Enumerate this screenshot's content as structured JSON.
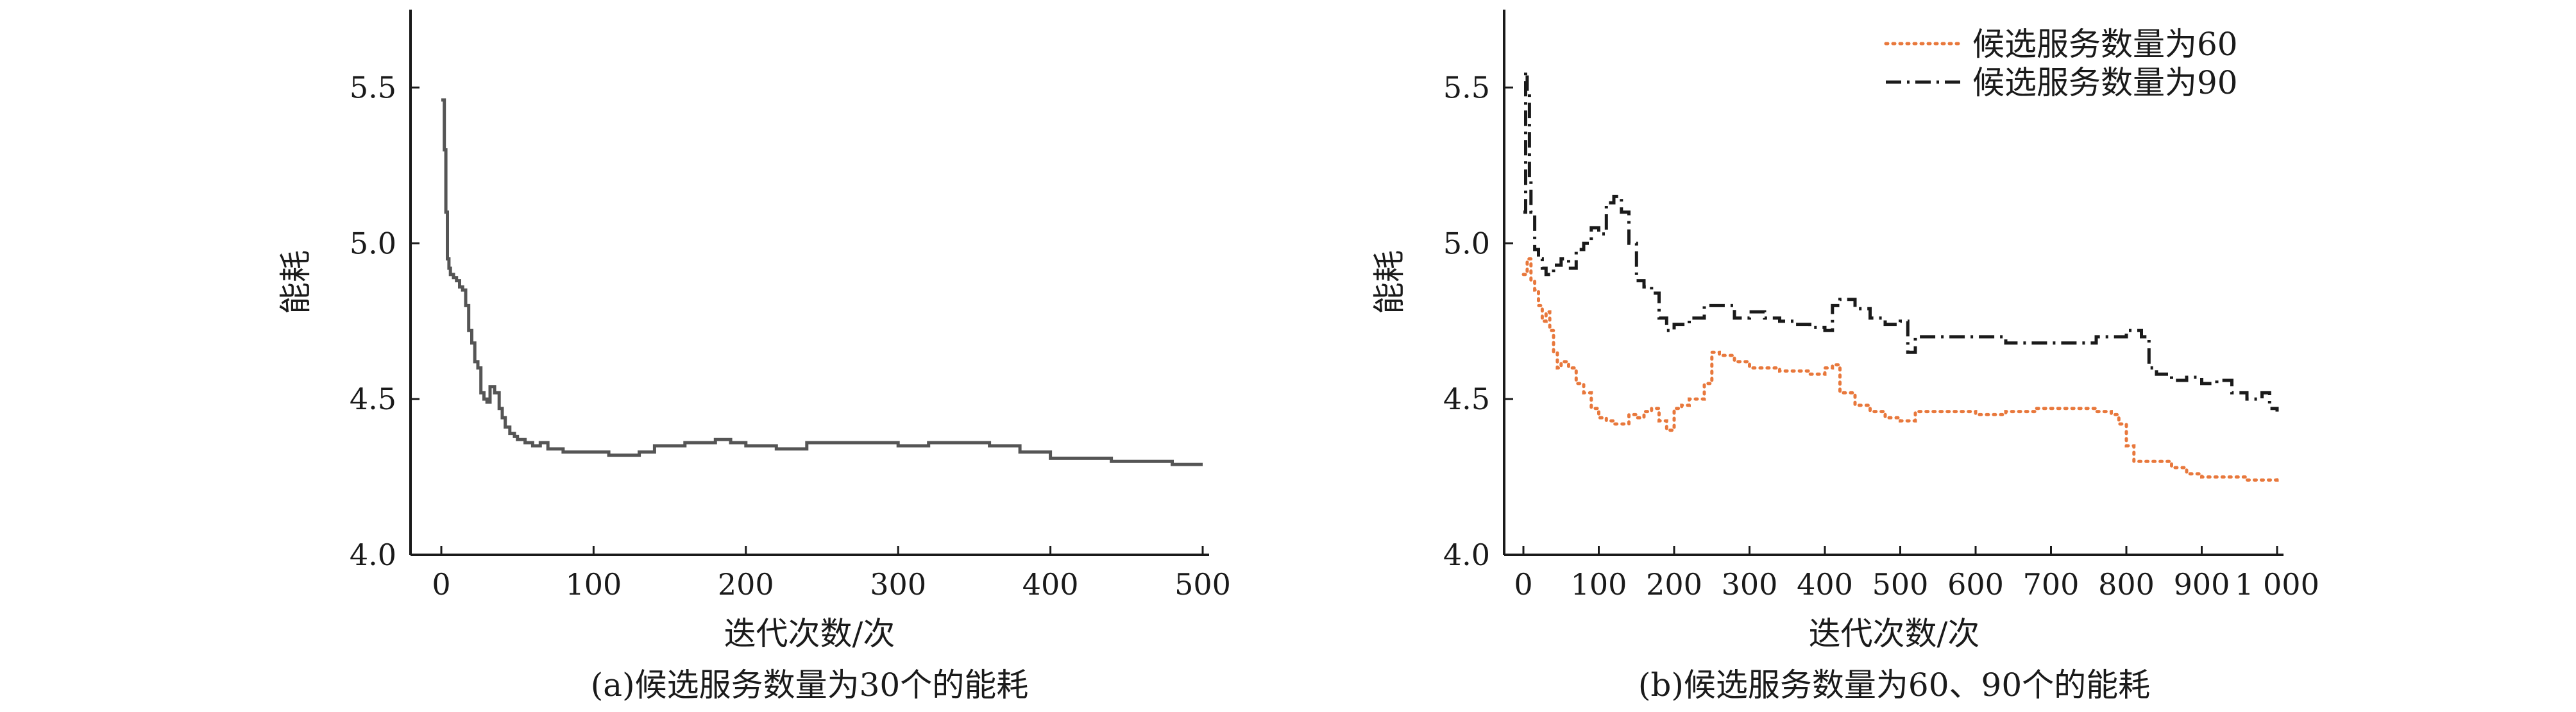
{
  "chart_data": [
    {
      "type": "line",
      "panel": "a",
      "caption": "(a)候选服务数量为30个的能耗",
      "xlabel": "迭代次数/次",
      "ylabel": "能耗",
      "xlim": [
        0,
        500
      ],
      "ylim": [
        4.0,
        5.75
      ],
      "x_ticks": [
        0,
        100,
        200,
        300,
        400,
        500
      ],
      "x_tick_labels": [
        "0",
        "100",
        "200",
        "300",
        "400",
        "500"
      ],
      "y_ticks": [
        4.0,
        4.5,
        5.0,
        5.5
      ],
      "y_tick_labels": [
        "4.0",
        "4.5",
        "5.0",
        "5.5"
      ],
      "grid": false,
      "series": [
        {
          "name": "",
          "color": "#555555",
          "style": "solid",
          "x": [
            0,
            2,
            3,
            4,
            5,
            6,
            8,
            10,
            12,
            14,
            16,
            18,
            20,
            22,
            24,
            26,
            28,
            30,
            32,
            35,
            38,
            40,
            42,
            45,
            48,
            50,
            55,
            60,
            65,
            70,
            75,
            80,
            90,
            100,
            110,
            120,
            130,
            140,
            150,
            160,
            170,
            180,
            190,
            200,
            220,
            240,
            260,
            280,
            300,
            320,
            340,
            360,
            380,
            400,
            420,
            440,
            460,
            480,
            500
          ],
          "values": [
            5.46,
            5.3,
            5.1,
            4.95,
            4.92,
            4.9,
            4.89,
            4.88,
            4.86,
            4.85,
            4.8,
            4.72,
            4.68,
            4.62,
            4.6,
            4.52,
            4.5,
            4.49,
            4.54,
            4.52,
            4.47,
            4.44,
            4.41,
            4.39,
            4.38,
            4.37,
            4.36,
            4.35,
            4.36,
            4.34,
            4.34,
            4.33,
            4.33,
            4.33,
            4.32,
            4.32,
            4.33,
            4.35,
            4.35,
            4.36,
            4.36,
            4.37,
            4.36,
            4.35,
            4.34,
            4.36,
            4.36,
            4.36,
            4.35,
            4.36,
            4.36,
            4.35,
            4.33,
            4.31,
            4.31,
            4.3,
            4.3,
            4.29,
            4.29
          ]
        }
      ]
    },
    {
      "type": "line",
      "panel": "b",
      "caption": "(b)候选服务数量为60、90个的能耗",
      "xlabel": "迭代次数/次",
      "ylabel": "能耗",
      "xlim": [
        0,
        1000
      ],
      "ylim": [
        4.0,
        5.75
      ],
      "x_ticks": [
        0,
        100,
        200,
        300,
        400,
        500,
        600,
        700,
        800,
        900,
        1000
      ],
      "x_tick_labels": [
        "0",
        "100",
        "200",
        "300",
        "400",
        "500",
        "600",
        "700",
        "800",
        "900",
        "1 000"
      ],
      "y_ticks": [
        4.0,
        4.5,
        5.0,
        5.5
      ],
      "y_tick_labels": [
        "4.0",
        "4.5",
        "5.0",
        "5.5"
      ],
      "grid": false,
      "legend_position": "top-right",
      "series": [
        {
          "name": "候选服务数量为60",
          "color": "#E8783C",
          "style": "dotted",
          "x": [
            0,
            5,
            10,
            15,
            20,
            25,
            30,
            35,
            40,
            45,
            50,
            60,
            70,
            80,
            90,
            100,
            110,
            120,
            140,
            150,
            160,
            170,
            180,
            190,
            200,
            210,
            220,
            240,
            250,
            260,
            280,
            300,
            340,
            380,
            400,
            410,
            420,
            440,
            460,
            480,
            500,
            520,
            560,
            600,
            640,
            680,
            720,
            760,
            780,
            790,
            800,
            810,
            830,
            860,
            880,
            900,
            940,
            960,
            980,
            1000
          ],
          "values": [
            4.9,
            4.95,
            4.88,
            4.85,
            4.8,
            4.75,
            4.78,
            4.72,
            4.65,
            4.6,
            4.62,
            4.6,
            4.55,
            4.52,
            4.47,
            4.44,
            4.43,
            4.42,
            4.45,
            4.44,
            4.46,
            4.47,
            4.43,
            4.4,
            4.47,
            4.48,
            4.5,
            4.55,
            4.65,
            4.64,
            4.62,
            4.6,
            4.59,
            4.58,
            4.6,
            4.61,
            4.52,
            4.48,
            4.46,
            4.44,
            4.43,
            4.46,
            4.46,
            4.45,
            4.46,
            4.47,
            4.47,
            4.46,
            4.45,
            4.42,
            4.35,
            4.3,
            4.3,
            4.28,
            4.26,
            4.25,
            4.25,
            4.24,
            4.24,
            4.25
          ]
        },
        {
          "name": "候选服务数量为90",
          "color": "#1a1a1a",
          "style": "dashdot",
          "x": [
            0,
            3,
            5,
            8,
            10,
            15,
            20,
            25,
            30,
            40,
            50,
            60,
            70,
            80,
            90,
            100,
            110,
            120,
            130,
            140,
            150,
            160,
            170,
            180,
            190,
            200,
            220,
            240,
            260,
            280,
            300,
            320,
            340,
            360,
            380,
            400,
            410,
            420,
            440,
            460,
            480,
            500,
            510,
            520,
            560,
            600,
            640,
            680,
            720,
            760,
            800,
            820,
            830,
            840,
            860,
            880,
            900,
            920,
            940,
            960,
            980,
            990,
            1000
          ],
          "values": [
            5.1,
            5.55,
            5.48,
            5.2,
            5.1,
            4.98,
            4.95,
            4.92,
            4.9,
            4.93,
            4.95,
            4.92,
            4.98,
            5.0,
            5.05,
            5.03,
            5.13,
            5.15,
            5.1,
            5.0,
            4.88,
            4.86,
            4.84,
            4.76,
            4.72,
            4.74,
            4.76,
            4.8,
            4.8,
            4.76,
            4.78,
            4.76,
            4.75,
            4.74,
            4.73,
            4.72,
            4.8,
            4.82,
            4.79,
            4.76,
            4.74,
            4.75,
            4.65,
            4.7,
            4.7,
            4.7,
            4.68,
            4.68,
            4.68,
            4.7,
            4.72,
            4.7,
            4.6,
            4.58,
            4.56,
            4.57,
            4.55,
            4.56,
            4.52,
            4.5,
            4.52,
            4.47,
            4.46
          ]
        }
      ]
    }
  ]
}
